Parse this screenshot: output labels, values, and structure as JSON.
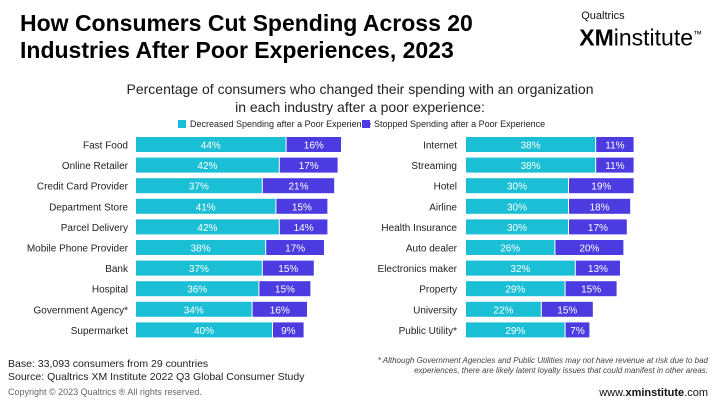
{
  "title": "How Consumers Cut Spending Across 20 Industries After Poor Experiences, 2023",
  "brand": {
    "small": "Qualtrics",
    "xm": "XM",
    "institute": "institute",
    "tm": "™"
  },
  "subtitle_line1": "Percentage of consumers who changed their spending with an organization",
  "subtitle_line2": "in each industry after a poor experience:",
  "footer": {
    "base": "Base: 33,093 consumers from 29 countries",
    "source": "Source: Qualtrics XM Institute 2022 Q3 Global Consumer Study",
    "note": "* Although Government Agencies and Public Utilities may not have revenue at risk due to bad experiences, there are likely latent loyalty issues that could manifest in other areas.",
    "copyright": "Copyright © 2023 Qualtrics ® All rights reserved.",
    "url_prefix": "www.",
    "url_bold": "xminstitute",
    "url_suffix": ".com"
  },
  "colors": {
    "decreased": "#1ABFD6",
    "stopped": "#4C3BE0",
    "label_text": "#ffffff"
  },
  "chart_data": [
    {
      "type": "bar",
      "orientation": "horizontal",
      "stacked": true,
      "value_suffix": "%",
      "categories": [
        "Fast Food",
        "Online Retailer",
        "Credit Card Provider",
        "Department Store",
        "Parcel Delivery",
        "Mobile Phone Provider",
        "Bank",
        "Hospital",
        "Government Agency*",
        "Supermarket"
      ],
      "series": [
        {
          "name": "Decreased Spending after a Poor Experience",
          "values": [
            44,
            42,
            37,
            41,
            42,
            38,
            37,
            36,
            34,
            40
          ]
        },
        {
          "name": "Stopped Spending after a Poor Experience",
          "values": [
            16,
            17,
            21,
            15,
            14,
            17,
            15,
            15,
            16,
            9
          ]
        }
      ],
      "xlim": [
        0,
        70
      ]
    },
    {
      "type": "bar",
      "orientation": "horizontal",
      "stacked": true,
      "value_suffix": "%",
      "categories": [
        "Internet",
        "Streaming",
        "Hotel",
        "Airline",
        "Health Insurance",
        "Auto dealer",
        "Electronics maker",
        "Property",
        "University",
        "Public Utility*"
      ],
      "series": [
        {
          "name": "Decreased Spending after a Poor Experience",
          "values": [
            38,
            38,
            30,
            30,
            30,
            26,
            32,
            29,
            22,
            29
          ]
        },
        {
          "name": "Stopped Spending after a Poor Experience",
          "values": [
            11,
            11,
            19,
            18,
            17,
            20,
            13,
            15,
            15,
            7
          ]
        }
      ],
      "xlim": [
        0,
        70
      ]
    }
  ]
}
